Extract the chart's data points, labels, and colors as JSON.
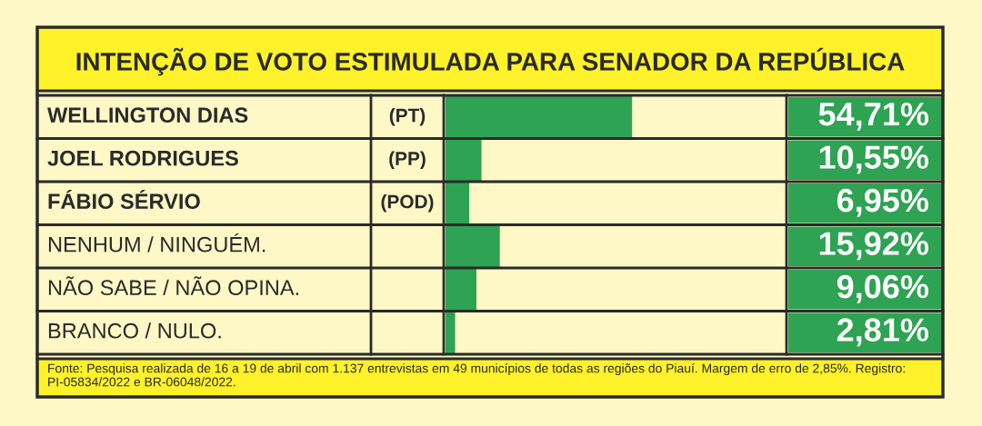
{
  "chart_data": {
    "type": "bar",
    "orientation": "horizontal",
    "title": "INTENÇÃO DE VOTO ESTIMULADA PARA SENADOR DA REPÚBLICA",
    "categories": [
      "WELLINGTON DIAS",
      "JOEL RODRIGUES",
      "FÁBIO SÉRVIO",
      "NENHUM / NINGUÉM.",
      "NÃO SABE / NÃO OPINA.",
      "BRANCO / NULO."
    ],
    "values": [
      54.71,
      10.55,
      6.95,
      15.92,
      9.06,
      2.81
    ],
    "value_labels": [
      "54,71%",
      "10,55%",
      "6,95%",
      "15,92%",
      "9,06%",
      "2,81%"
    ],
    "color": "#2ea353",
    "xlim": [
      0,
      100
    ],
    "annotations": [
      "(PT)",
      "(PP)",
      "(POD)",
      "Fonte: Pesquisa realizada de 16 a 19 de abril com 1.137 entrevistas em 49 municípios de todas as regiões do Piauí. Margem de erro de 2,85%. Registro: PI-05834/2022 e BR-06048/2022."
    ]
  }
}
